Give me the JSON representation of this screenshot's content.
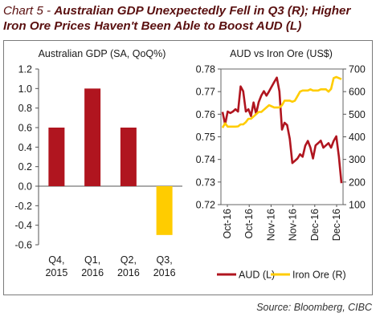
{
  "header": {
    "chart_number": "Chart 5 - ",
    "title": "Australian GDP Unexpectedly Fell in Q3 (R); Higher Iron Ore Prices Haven't Been Able to Boost AUD (L)"
  },
  "source": "Source: Bloomberg, CIBC",
  "colors": {
    "gdp_bar": "#b0151f",
    "gdp_bar_negative": "#ffcc00",
    "aud": "#b0151f",
    "iron_ore": "#ffcc00"
  },
  "chart_data": [
    {
      "type": "bar",
      "title": "Australian GDP (SA, QoQ%)",
      "categories": [
        [
          "Q4,",
          "2015"
        ],
        [
          "Q1,",
          "2016"
        ],
        [
          "Q2,",
          "2016"
        ],
        [
          "Q3,",
          "2016"
        ]
      ],
      "values": [
        0.6,
        1.0,
        0.6,
        -0.5
      ],
      "ylim": [
        -0.6,
        1.2
      ],
      "yticks": [
        "1.2",
        "1.0",
        "0.8",
        "0.6",
        "0.4",
        "0.2",
        "0.0",
        "-0.2",
        "-0.4",
        "-0.6"
      ],
      "grid": false
    },
    {
      "type": "line",
      "title": "AUD vs Iron Ore (US$)",
      "x_ticks": [
        "Oct-16",
        "Oct-16",
        "Nov-16",
        "Nov-16",
        "Dec-16",
        "Dec-16"
      ],
      "y_left_ticks": [
        "0.78",
        "0.77",
        "0.76",
        "0.75",
        "0.74",
        "0.73",
        "0.72"
      ],
      "ylim_left": [
        0.72,
        0.78
      ],
      "y_right_ticks": [
        "700",
        "600",
        "500",
        "400",
        "300",
        "200",
        "100"
      ],
      "ylim_right": [
        100,
        700
      ],
      "legend": "bottom",
      "series": [
        {
          "name": "AUD (L)",
          "axis": "left",
          "values": [
            0.761,
            0.7555,
            0.7612,
            0.7605,
            0.7612,
            0.7622,
            0.7612,
            0.7723,
            0.7702,
            0.7612,
            0.7622,
            0.7592,
            0.7652,
            0.7602,
            0.7653,
            0.7683,
            0.7702,
            0.7682,
            0.7701,
            0.7722,
            0.7742,
            0.7762,
            0.7701,
            0.7532,
            0.7562,
            0.7552,
            0.7491,
            0.7384,
            0.7394,
            0.7404,
            0.7423,
            0.7412,
            0.7461,
            0.7482,
            0.7452,
            0.7404,
            0.7462,
            0.7472,
            0.7483,
            0.7452,
            0.7462,
            0.7472,
            0.7452,
            0.7482,
            0.7502,
            0.7413,
            0.7295
          ]
        },
        {
          "name": "Iron Ore (R)",
          "axis": "right",
          "values": [
            440,
            460,
            445,
            445,
            445,
            445,
            446,
            455,
            455,
            465,
            480,
            480,
            490,
            500,
            510,
            510,
            520,
            530,
            540,
            535,
            530,
            530,
            530,
            540,
            560,
            560,
            560,
            555,
            560,
            580,
            600,
            605,
            605,
            605,
            610,
            605,
            605,
            605,
            610,
            610,
            610,
            600,
            612,
            660,
            665,
            660,
            655
          ]
        }
      ]
    }
  ]
}
